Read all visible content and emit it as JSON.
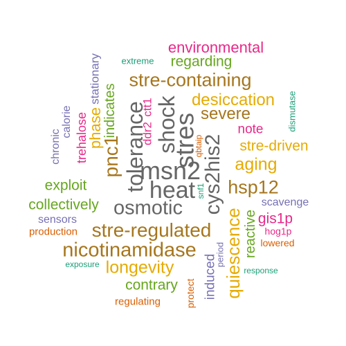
{
  "palette": {
    "magenta": "#e7298a",
    "olive_green": "#66a61e",
    "brown": "#a6761d",
    "dark_gray": "#666666",
    "orange": "#e6ab02",
    "orange_red": "#d95f02",
    "purple": "#7570b3",
    "teal": "#1b9e77"
  },
  "words": [
    {
      "id": "environmental",
      "text": "environmental",
      "color": "#e7298a",
      "rotated": false
    },
    {
      "id": "regarding",
      "text": "regarding",
      "color": "#66a61e",
      "rotated": false
    },
    {
      "id": "extreme",
      "text": "extreme",
      "color": "#1b9e77",
      "rotated": false
    },
    {
      "id": "stationary",
      "text": "stationary",
      "color": "#7570b3",
      "rotated": true
    },
    {
      "id": "stre-containing",
      "text": "stre-containing",
      "color": "#a6761d",
      "rotated": false
    },
    {
      "id": "desiccation",
      "text": "desiccation",
      "color": "#e6ab02",
      "rotated": false
    },
    {
      "id": "dismutase",
      "text": "dismutase",
      "color": "#1b9e77",
      "rotated": true
    },
    {
      "id": "severe",
      "text": "severe",
      "color": "#a6761d",
      "rotated": false
    },
    {
      "id": "note",
      "text": "note",
      "color": "#e7298a",
      "rotated": false
    },
    {
      "id": "stre-driven",
      "text": "stre-driven",
      "color": "#e6ab02",
      "rotated": false
    },
    {
      "id": "aging",
      "text": "aging",
      "color": "#e6ab02",
      "rotated": false
    },
    {
      "id": "calorie",
      "text": "calorie",
      "color": "#7570b3",
      "rotated": true
    },
    {
      "id": "chronic",
      "text": "chronic",
      "color": "#7570b3",
      "rotated": true
    },
    {
      "id": "trehalose",
      "text": "trehalose",
      "color": "#e7298a",
      "rotated": true
    },
    {
      "id": "phase",
      "text": "phase",
      "color": "#e6ab02",
      "rotated": true
    },
    {
      "id": "indicates",
      "text": "indicates",
      "color": "#66a61e",
      "rotated": true
    },
    {
      "id": "pnc1",
      "text": "pnc1",
      "color": "#a6761d",
      "rotated": true
    },
    {
      "id": "tolerance",
      "text": "tolerance",
      "color": "#666666",
      "rotated": true
    },
    {
      "id": "ddr2",
      "text": "ddr2",
      "color": "#e7298a",
      "rotated": true
    },
    {
      "id": "ctt1",
      "text": "ctt1",
      "color": "#e7298a",
      "rotated": true
    },
    {
      "id": "shock",
      "text": "shock",
      "color": "#666666",
      "rotated": true
    },
    {
      "id": "stres",
      "text": "stres",
      "color": "#666666",
      "rotated": true
    },
    {
      "id": "msn2",
      "text": "msn2",
      "color": "#666666",
      "rotated": false
    },
    {
      "id": "cys2his2",
      "text": "cys2his2",
      "color": "#666666",
      "rotated": true
    },
    {
      "id": "qbtaip",
      "text": "qbtaip",
      "color": "#d95f02",
      "rotated": true
    },
    {
      "id": "hsp12",
      "text": "hsp12",
      "color": "#a6761d",
      "rotated": false
    },
    {
      "id": "heat",
      "text": "heat",
      "color": "#666666",
      "rotated": false
    },
    {
      "id": "snf1",
      "text": "snf1",
      "color": "#1b9e77",
      "rotated": true
    },
    {
      "id": "exploit",
      "text": "exploit",
      "color": "#66a61e",
      "rotated": false
    },
    {
      "id": "collectively",
      "text": "collectively",
      "color": "#66a61e",
      "rotated": false
    },
    {
      "id": "osmotic",
      "text": "osmotic",
      "color": "#666666",
      "rotated": false
    },
    {
      "id": "scavenge",
      "text": "scavenge",
      "color": "#7570b3",
      "rotated": false
    },
    {
      "id": "sensors",
      "text": "sensors",
      "color": "#7570b3",
      "rotated": false
    },
    {
      "id": "gis1p",
      "text": "gis1p",
      "color": "#e7298a",
      "rotated": false
    },
    {
      "id": "production",
      "text": "production",
      "color": "#d95f02",
      "rotated": false
    },
    {
      "id": "stre-regulated",
      "text": "stre-regulated",
      "color": "#a6761d",
      "rotated": false
    },
    {
      "id": "quiescence",
      "text": "quiescence",
      "color": "#e6ab02",
      "rotated": true
    },
    {
      "id": "reactive",
      "text": "reactive",
      "color": "#66a61e",
      "rotated": true
    },
    {
      "id": "hog1p",
      "text": "hog1p",
      "color": "#e7298a",
      "rotated": false
    },
    {
      "id": "lowered",
      "text": "lowered",
      "color": "#d95f02",
      "rotated": false
    },
    {
      "id": "nicotinamidase",
      "text": "nicotinamidase",
      "color": "#a6761d",
      "rotated": false
    },
    {
      "id": "period",
      "text": "period",
      "color": "#7570b3",
      "rotated": true
    },
    {
      "id": "induced",
      "text": "induced",
      "color": "#7570b3",
      "rotated": true
    },
    {
      "id": "exposure",
      "text": "exposure",
      "color": "#1b9e77",
      "rotated": false
    },
    {
      "id": "longevity",
      "text": "longevity",
      "color": "#e6ab02",
      "rotated": false
    },
    {
      "id": "response",
      "text": "response",
      "color": "#1b9e77",
      "rotated": false
    },
    {
      "id": "contrary",
      "text": "contrary",
      "color": "#66a61e",
      "rotated": false
    },
    {
      "id": "protect",
      "text": "protect",
      "color": "#d95f02",
      "rotated": true
    },
    {
      "id": "regulating",
      "text": "regulating",
      "color": "#d95f02",
      "rotated": false
    }
  ]
}
